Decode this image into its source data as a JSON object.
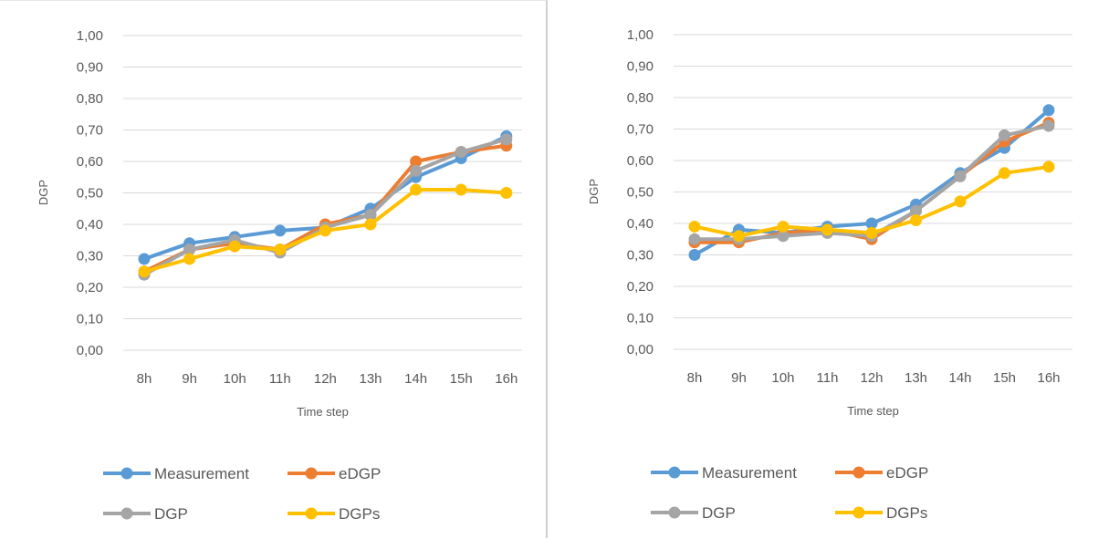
{
  "colors": {
    "measurement": "#5B9BD5",
    "edgp": "#ED7D31",
    "dgp": "#A5A5A5",
    "dgps": "#FFC000",
    "grid": "#D9D9D9",
    "text": "#595959"
  },
  "chart_data": [
    {
      "type": "line",
      "categories": [
        "8h",
        "9h",
        "10h",
        "11h",
        "12h",
        "13h",
        "14h",
        "15h",
        "16h"
      ],
      "xlabel": "Time step",
      "ylabel": "DGP",
      "ylim": [
        0,
        1
      ],
      "yticks": [
        "0,00",
        "0,10",
        "0,20",
        "0,30",
        "0,40",
        "0,50",
        "0,60",
        "0,70",
        "0,80",
        "0,90",
        "1,00"
      ],
      "grid": true,
      "legend": "bottom",
      "series": [
        {
          "name": "Measurement",
          "color": "#5B9BD5",
          "values": [
            0.29,
            0.34,
            0.36,
            0.38,
            0.39,
            0.45,
            0.55,
            0.61,
            0.68
          ]
        },
        {
          "name": "eDGP",
          "color": "#ED7D31",
          "values": [
            0.25,
            0.32,
            0.34,
            0.32,
            0.4,
            0.43,
            0.6,
            0.63,
            0.65
          ]
        },
        {
          "name": "DGP",
          "color": "#A5A5A5",
          "values": [
            0.24,
            0.32,
            0.35,
            0.31,
            0.39,
            0.43,
            0.57,
            0.63,
            0.67
          ]
        },
        {
          "name": "DGPs",
          "color": "#FFC000",
          "values": [
            0.25,
            0.29,
            0.33,
            0.32,
            0.38,
            0.4,
            0.51,
            0.51,
            0.5
          ]
        }
      ]
    },
    {
      "type": "line",
      "categories": [
        "8h",
        "9h",
        "10h",
        "11h",
        "12h",
        "13h",
        "14h",
        "15h",
        "16h"
      ],
      "xlabel": "Time step",
      "ylabel": "DGP",
      "ylim": [
        0,
        1
      ],
      "yticks": [
        "0,00",
        "0,10",
        "0,20",
        "0,30",
        "0,40",
        "0,50",
        "0,60",
        "0,70",
        "0,80",
        "0,90",
        "1,00"
      ],
      "grid": true,
      "legend": "bottom",
      "series": [
        {
          "name": "Measurement",
          "color": "#5B9BD5",
          "values": [
            0.3,
            0.38,
            0.37,
            0.39,
            0.4,
            0.46,
            0.56,
            0.64,
            0.76
          ]
        },
        {
          "name": "eDGP",
          "color": "#ED7D31",
          "values": [
            0.34,
            0.34,
            0.37,
            0.38,
            0.35,
            0.44,
            0.55,
            0.66,
            0.72
          ]
        },
        {
          "name": "DGP",
          "color": "#A5A5A5",
          "values": [
            0.35,
            0.35,
            0.36,
            0.37,
            0.36,
            0.44,
            0.55,
            0.68,
            0.71
          ]
        },
        {
          "name": "DGPs",
          "color": "#FFC000",
          "values": [
            0.39,
            0.36,
            0.39,
            0.38,
            0.37,
            0.41,
            0.47,
            0.56,
            0.58
          ]
        }
      ]
    }
  ]
}
